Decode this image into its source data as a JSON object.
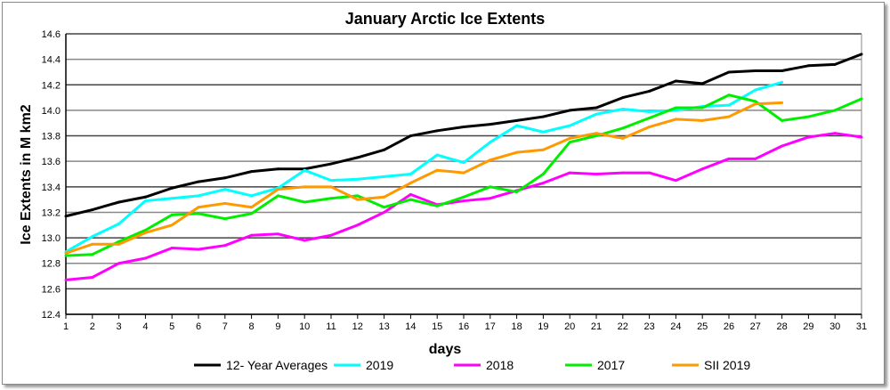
{
  "chart_data": {
    "type": "line",
    "title": "January Arctic Ice Extents",
    "xlabel": "days",
    "ylabel": "Ice Extents in M km2",
    "xlim": [
      1,
      31
    ],
    "ylim": [
      12.4,
      14.6
    ],
    "yticks": [
      "12.4",
      "12.6",
      "12.8",
      "13.0",
      "13.2",
      "13.4",
      "13.6",
      "13.8",
      "14.0",
      "14.2",
      "14.4",
      "14.6"
    ],
    "xticks": [
      "1",
      "2",
      "3",
      "4",
      "5",
      "6",
      "7",
      "8",
      "9",
      "10",
      "11",
      "12",
      "13",
      "14",
      "15",
      "16",
      "17",
      "18",
      "19",
      "20",
      "21",
      "22",
      "23",
      "24",
      "25",
      "26",
      "27",
      "28",
      "29",
      "30",
      "31"
    ],
    "grid": true,
    "legend": "bottom",
    "series": [
      {
        "name": "12- Year Averages",
        "color": "#000000",
        "values": [
          13.17,
          13.22,
          13.28,
          13.32,
          13.39,
          13.44,
          13.47,
          13.52,
          13.54,
          13.54,
          13.58,
          13.63,
          13.69,
          13.8,
          13.84,
          13.87,
          13.89,
          13.92,
          13.95,
          14.0,
          14.02,
          14.1,
          14.15,
          14.23,
          14.21,
          14.3,
          14.31,
          14.31,
          14.35,
          14.36,
          14.44
        ]
      },
      {
        "name": "2019",
        "color": "#00ffff",
        "values": [
          12.89,
          13.01,
          13.11,
          13.29,
          13.31,
          13.33,
          13.38,
          13.33,
          13.39,
          13.53,
          13.45,
          13.46,
          13.48,
          13.5,
          13.65,
          13.59,
          13.75,
          13.88,
          13.83,
          13.88,
          13.97,
          14.01,
          13.99,
          14.0,
          14.03,
          14.04,
          14.16,
          14.22
        ]
      },
      {
        "name": "2018",
        "color": "#ff00ff",
        "values": [
          12.67,
          12.69,
          12.8,
          12.84,
          12.92,
          12.91,
          12.94,
          13.02,
          13.03,
          12.98,
          13.02,
          13.1,
          13.2,
          13.34,
          13.26,
          13.29,
          13.31,
          13.37,
          13.43,
          13.51,
          13.5,
          13.51,
          13.51,
          13.45,
          13.54,
          13.62,
          13.62,
          13.72,
          13.79,
          13.82,
          13.79
        ]
      },
      {
        "name": "2017",
        "color": "#00ee00",
        "values": [
          12.86,
          12.87,
          12.97,
          13.06,
          13.18,
          13.19,
          13.15,
          13.19,
          13.33,
          13.28,
          13.31,
          13.33,
          13.24,
          13.3,
          13.25,
          13.32,
          13.4,
          13.36,
          13.5,
          13.75,
          13.8,
          13.86,
          13.94,
          14.02,
          14.02,
          14.12,
          14.07,
          13.92,
          13.95,
          14.0,
          14.09
        ]
      },
      {
        "name": "SII 2019",
        "color": "#ff9900",
        "values": [
          12.88,
          12.95,
          12.95,
          13.04,
          13.1,
          13.24,
          13.27,
          13.24,
          13.38,
          13.4,
          13.4,
          13.3,
          13.32,
          13.43,
          13.53,
          13.51,
          13.61,
          13.67,
          13.69,
          13.78,
          13.82,
          13.78,
          13.87,
          13.93,
          13.92,
          13.95,
          14.05,
          14.06
        ]
      }
    ]
  }
}
